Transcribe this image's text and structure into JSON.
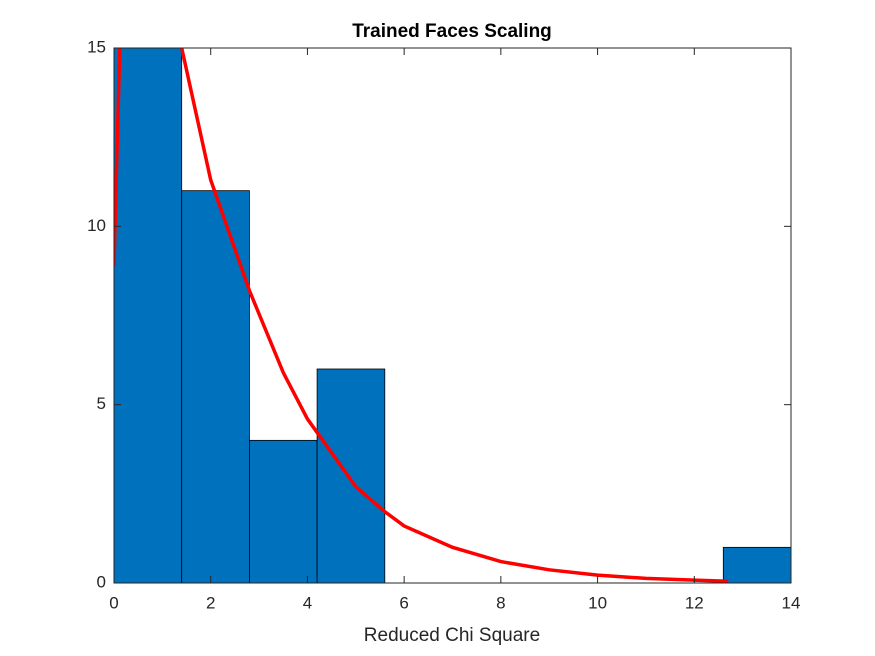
{
  "chart_data": {
    "type": "histogram",
    "title": "Trained Faces Scaling",
    "xlabel": "Reduced Chi Square",
    "bins": [
      0,
      1.4,
      2.8,
      4.2,
      5.6,
      7,
      8.4,
      9.8,
      11.2,
      12.6,
      14
    ],
    "values": [
      15,
      11,
      4,
      6,
      0,
      0,
      0,
      0,
      0,
      1
    ],
    "color": "#0072bd",
    "curve": {
      "color": "#ff0000",
      "x": [
        0,
        0.06,
        0.12,
        0.8,
        1.4,
        2,
        2.8,
        3.5,
        4,
        5,
        5.6,
        6,
        7,
        8,
        9,
        10,
        11,
        12,
        12.7
      ],
      "y": [
        8.9,
        12,
        15,
        null,
        15,
        11.3,
        8.2,
        5.9,
        4.6,
        2.7,
        2.0,
        1.6,
        1.0,
        0.6,
        0.37,
        0.22,
        0.13,
        0.08,
        0.05
      ]
    },
    "xlim": [
      0,
      14
    ],
    "ylim": [
      0,
      15
    ],
    "xticks": [
      0,
      2,
      4,
      6,
      8,
      10,
      12,
      14
    ],
    "yticks": [
      0,
      5,
      10,
      15
    ],
    "grid": false
  }
}
